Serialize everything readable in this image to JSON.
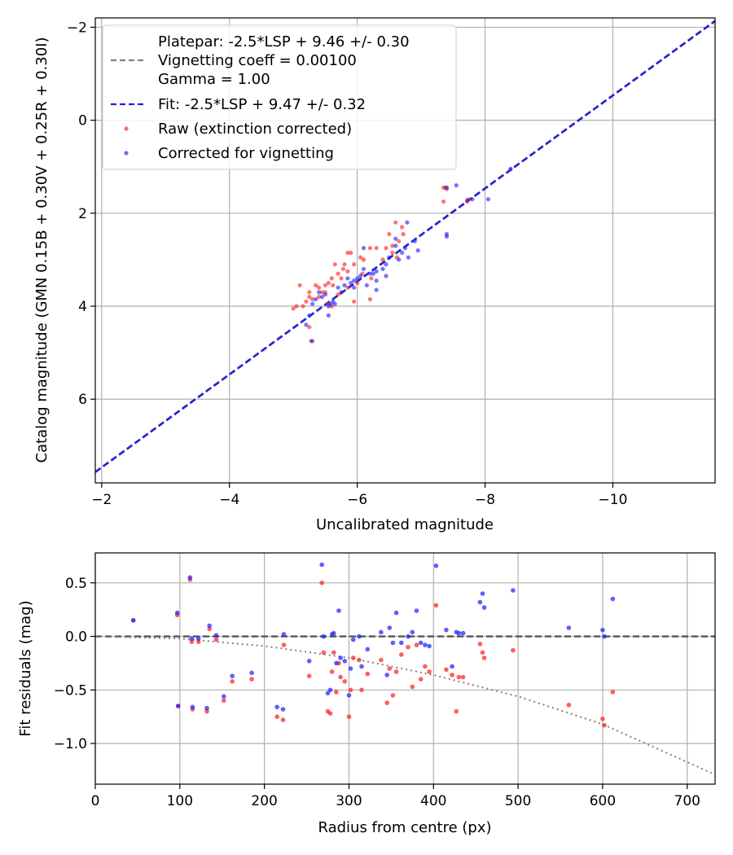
{
  "chart_data": [
    {
      "type": "scatter",
      "title": "",
      "xlabel": "Uncalibrated magnitude",
      "ylabel": "Catalog magnitude (GMN 0.15B + 0.30V + 0.25R + 0.30I)",
      "xlim": [
        -1.9,
        -11.6
      ],
      "ylim": [
        7.8,
        -2.2
      ],
      "xticks": [
        -2,
        -4,
        -6,
        -8,
        -10
      ],
      "xtick_labels": [
        "−2",
        "−4",
        "−6",
        "−8",
        "−10"
      ],
      "yticks": [
        -2,
        0,
        2,
        4,
        6
      ],
      "ytick_labels": [
        "−2",
        "0",
        "2",
        "4",
        "6"
      ],
      "grid": true,
      "legend_position": "top-left",
      "legend": [
        {
          "name": "platepar",
          "label_lines": [
            "Platepar: -2.5*LSP + 9.46 +/- 0.30",
            "Vignetting coeff = 0.00100",
            "Gamma = 1.00"
          ],
          "style": "dashed",
          "color": "#808080"
        },
        {
          "name": "fit",
          "label_lines": [
            "Fit: -2.5*LSP + 9.47 +/- 0.32"
          ],
          "style": "dashed",
          "color": "#2020e0"
        },
        {
          "name": "raw",
          "label_lines": [
            "Raw (extinction corrected)"
          ],
          "style": "marker",
          "color": "#ff2020"
        },
        {
          "name": "corrected",
          "label_lines": [
            "Corrected for vignetting"
          ],
          "style": "marker",
          "color": "#2020ff"
        }
      ],
      "lines": [
        {
          "name": "platepar",
          "intercept": 9.46,
          "slope": 1,
          "color": "#808080",
          "style": "dashed"
        },
        {
          "name": "fit",
          "intercept": 9.47,
          "slope": 1,
          "color": "#2020e0",
          "style": "dashed"
        }
      ],
      "series": [
        {
          "name": "Raw (extinction corrected)",
          "color": "#ff2020",
          "x": [
            -8.4,
            -7.35,
            -7.38,
            -7.35,
            -7.4,
            -7.75,
            -7.72,
            -6.7,
            -6.6,
            -6.72,
            -6.5,
            -6.65,
            -6.55,
            -6.4,
            -6.62,
            -6.55,
            -6.45,
            -6.3,
            -6.2,
            -6.22,
            -6.1,
            -6.05,
            -6.08,
            -5.95,
            -5.9,
            -5.85,
            -5.85,
            -5.8,
            -5.78,
            -5.75,
            -5.7,
            -5.65,
            -5.62,
            -5.6,
            -5.55,
            -5.5,
            -5.5,
            -5.45,
            -5.4,
            -5.35,
            -5.3,
            -5.25,
            -5.2,
            -5.15,
            -5.1,
            -5.05,
            -5.0,
            -5.3,
            -5.25,
            -6.0,
            -5.95,
            -6.2,
            -5.85,
            -5.7,
            -5.55,
            -5.25,
            -5.4,
            -5.6
          ],
          "y": [
            1.05,
            1.45,
            1.45,
            1.75,
            1.48,
            1.7,
            1.75,
            2.3,
            2.2,
            2.45,
            2.45,
            2.6,
            2.85,
            3.0,
            2.95,
            2.7,
            2.75,
            2.75,
            2.75,
            3.4,
            3.0,
            2.95,
            3.3,
            3.1,
            2.85,
            2.85,
            3.25,
            3.1,
            3.2,
            3.4,
            3.3,
            3.1,
            3.55,
            3.4,
            3.5,
            3.7,
            3.55,
            3.7,
            3.8,
            3.55,
            3.85,
            3.7,
            3.9,
            4.0,
            3.55,
            4.0,
            4.05,
            4.75,
            4.45,
            3.5,
            3.9,
            3.85,
            3.6,
            3.75,
            3.95,
            3.8,
            3.6,
            4.0
          ]
        },
        {
          "name": "Corrected for vignetting",
          "color": "#2020ff",
          "x": [
            -8.4,
            -7.55,
            -7.4,
            -7.8,
            -8.05,
            -7.72,
            -7.4,
            -6.78,
            -6.9,
            -6.75,
            -6.6,
            -6.7,
            -6.65,
            -6.5,
            -6.6,
            -6.45,
            -6.4,
            -6.3,
            -6.25,
            -6.3,
            -6.2,
            -6.15,
            -6.1,
            -6.05,
            -6.0,
            -5.95,
            -5.9,
            -5.85,
            -5.8,
            -5.75,
            -5.7,
            -5.65,
            -5.62,
            -5.58,
            -5.55,
            -5.5,
            -5.45,
            -5.4,
            -5.35,
            -5.3,
            -5.25,
            -5.2,
            -6.95,
            -6.3,
            -6.1,
            -5.95,
            -5.55,
            -7.4,
            -5.28,
            -6.45,
            -6.8
          ],
          "y": [
            1.05,
            1.4,
            1.45,
            1.7,
            1.7,
            1.72,
            2.45,
            2.2,
            2.6,
            2.75,
            2.55,
            2.85,
            3.0,
            2.95,
            2.7,
            3.1,
            3.2,
            3.25,
            3.3,
            3.45,
            3.3,
            3.55,
            3.2,
            3.35,
            3.4,
            3.45,
            3.5,
            3.4,
            3.55,
            3.7,
            3.6,
            3.95,
            3.9,
            3.95,
            4.0,
            3.75,
            3.8,
            3.7,
            3.85,
            3.95,
            4.2,
            4.4,
            2.8,
            3.65,
            2.75,
            3.6,
            4.2,
            2.5,
            4.75,
            3.35,
            2.95
          ]
        }
      ]
    },
    {
      "type": "scatter",
      "title": "",
      "xlabel": "Radius from centre (px)",
      "ylabel": "Fit residuals (mag)",
      "xlim": [
        0,
        733
      ],
      "ylim": [
        -1.38,
        0.78
      ],
      "xticks": [
        0,
        100,
        200,
        300,
        400,
        500,
        600,
        700
      ],
      "xtick_labels": [
        "0",
        "100",
        "200",
        "300",
        "400",
        "500",
        "600",
        "700"
      ],
      "yticks": [
        0.5,
        0.0,
        -0.5,
        -1.0
      ],
      "ytick_labels": [
        "0.5",
        "0.0",
        "−0.5",
        "−1.0"
      ],
      "grid": true,
      "lines": [
        {
          "name": "zero",
          "x": [
            0,
            733
          ],
          "y": [
            0,
            0
          ],
          "color": "#555555",
          "style": "dashed"
        },
        {
          "name": "vignetting model",
          "x": [
            0,
            100,
            200,
            300,
            400,
            500,
            600,
            733
          ],
          "y": [
            0,
            -0.02,
            -0.09,
            -0.2,
            -0.36,
            -0.56,
            -0.82,
            -1.29
          ],
          "color": "#808080",
          "style": "dotted"
        }
      ],
      "series": [
        {
          "name": "Raw (extinction corrected)",
          "color": "#ff2020",
          "x": [
            45,
            97,
            98,
            112,
            114,
            115,
            122,
            132,
            135,
            143,
            152,
            162,
            185,
            215,
            222,
            223,
            253,
            268,
            270,
            275,
            278,
            280,
            282,
            285,
            288,
            290,
            295,
            300,
            302,
            305,
            312,
            315,
            322,
            338,
            345,
            348,
            352,
            356,
            362,
            370,
            375,
            380,
            385,
            390,
            395,
            403,
            415,
            422,
            427,
            430,
            435,
            455,
            458,
            460,
            494,
            560,
            600,
            602,
            612
          ],
          "y": [
            0.15,
            0.2,
            -0.65,
            0.53,
            -0.05,
            -0.68,
            -0.05,
            -0.7,
            0.07,
            -0.03,
            -0.6,
            -0.42,
            -0.4,
            -0.75,
            -0.78,
            -0.08,
            -0.37,
            0.5,
            -0.15,
            -0.7,
            -0.72,
            -0.33,
            -0.15,
            -0.52,
            -0.25,
            -0.38,
            -0.42,
            -0.75,
            -0.5,
            -0.2,
            -0.22,
            -0.5,
            -0.35,
            -0.22,
            -0.62,
            -0.3,
            -0.55,
            -0.33,
            -0.17,
            -0.1,
            -0.47,
            -0.08,
            -0.4,
            -0.28,
            -0.33,
            0.29,
            -0.31,
            -0.36,
            -0.7,
            -0.38,
            -0.38,
            -0.07,
            -0.15,
            -0.2,
            -0.13,
            -0.64,
            -0.77,
            -0.83,
            -0.52
          ]
        },
        {
          "name": "Corrected for vignetting",
          "color": "#2020ff",
          "x": [
            45,
            97,
            98,
            112,
            114,
            115,
            122,
            132,
            135,
            143,
            152,
            162,
            185,
            215,
            222,
            223,
            253,
            268,
            270,
            275,
            278,
            280,
            282,
            285,
            288,
            290,
            295,
            300,
            302,
            305,
            312,
            315,
            322,
            338,
            345,
            348,
            352,
            356,
            362,
            370,
            375,
            380,
            385,
            390,
            395,
            403,
            415,
            422,
            427,
            430,
            435,
            455,
            458,
            460,
            494,
            560,
            600,
            602,
            612
          ],
          "y": [
            0.15,
            0.22,
            -0.65,
            0.55,
            -0.02,
            -0.66,
            -0.02,
            -0.67,
            0.1,
            0.01,
            -0.56,
            -0.37,
            -0.34,
            -0.66,
            -0.68,
            0.02,
            -0.23,
            0.67,
            0.0,
            -0.53,
            -0.5,
            0.02,
            0.03,
            -0.25,
            0.24,
            -0.2,
            -0.23,
            -0.55,
            -0.3,
            -0.03,
            0.0,
            -0.28,
            -0.12,
            0.04,
            -0.36,
            0.08,
            -0.06,
            0.22,
            -0.06,
            0.0,
            0.04,
            0.24,
            -0.06,
            -0.08,
            -0.09,
            0.66,
            0.06,
            -0.28,
            0.04,
            0.03,
            0.03,
            0.32,
            0.4,
            0.27,
            0.43,
            0.08,
            0.06,
            0.0,
            0.35
          ]
        }
      ]
    }
  ]
}
